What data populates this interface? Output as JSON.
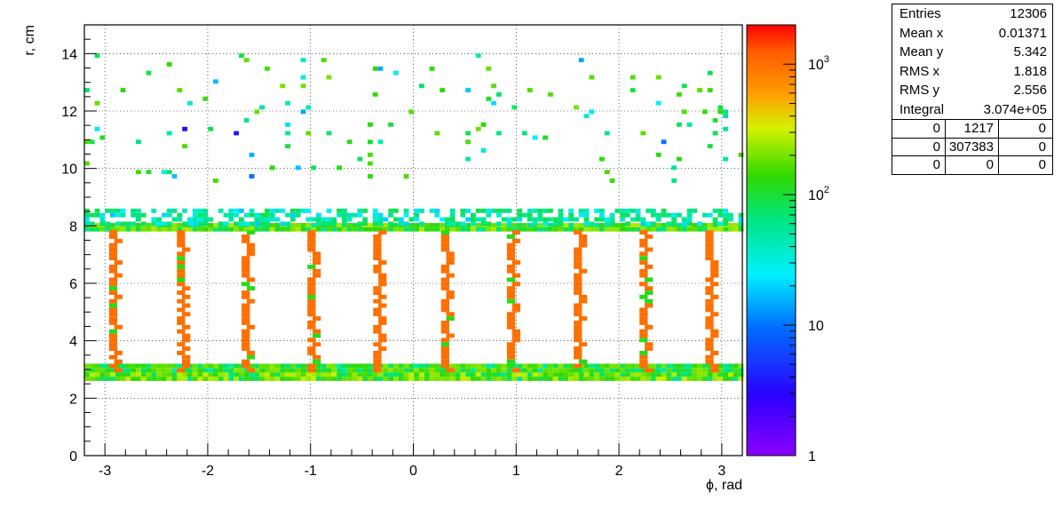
{
  "stats_box": {
    "rows": [
      {
        "label": "Entries",
        "value": "12306"
      },
      {
        "label": "Mean x",
        "value": "0.01371"
      },
      {
        "label": "Mean y",
        "value": "5.342"
      },
      {
        "label": "RMS x",
        "value": "1.818"
      },
      {
        "label": "RMS y",
        "value": "2.556"
      },
      {
        "label": "Integral",
        "value": "3.074e+05"
      }
    ],
    "overflow_grid": [
      [
        "0",
        "1217",
        "0"
      ],
      [
        "0",
        "307383",
        "0"
      ],
      [
        "0",
        "0",
        "0"
      ]
    ]
  },
  "chart_data": {
    "type": "heatmap",
    "xlabel": "ϕ, rad",
    "ylabel": "r, cm",
    "xlim": [
      -3.2,
      3.2
    ],
    "ylim": [
      0,
      15
    ],
    "x_ticks": [
      -3,
      -2,
      -1,
      0,
      1,
      2,
      3
    ],
    "y_ticks": [
      0,
      2,
      4,
      6,
      8,
      10,
      12,
      14
    ],
    "grid": true,
    "color_scale": "log",
    "z_range": [
      1,
      2000
    ],
    "colorbar_ticks": [
      "1",
      "10",
      "10^2",
      "10^3"
    ],
    "bins": [
      {
        "x_range": [
          -3.2,
          3.2
        ],
        "y_range": [
          2.6,
          2.9
        ],
        "z": 200,
        "note": "inner ring"
      },
      {
        "x_range": [
          -3.2,
          3.2
        ],
        "y_range": [
          2.9,
          3.2
        ],
        "z": 150
      },
      {
        "x_range": [
          -3.2,
          3.2
        ],
        "y_range": [
          7.8,
          8.0
        ],
        "z": 180,
        "note": "outer ring"
      },
      {
        "x_range": [
          -3.2,
          3.2
        ],
        "y_range": [
          8.0,
          8.6
        ],
        "z": 60
      },
      {
        "x_range": [
          -3.2,
          3.2
        ],
        "y_range": [
          9.5,
          14.0
        ],
        "z": 5,
        "note": "sparse scatter"
      }
    ],
    "ladder_columns": [
      {
        "x": -2.91,
        "y_range": [
          2.9,
          7.8
        ],
        "z": 1000
      },
      {
        "x": -2.25,
        "y_range": [
          2.9,
          7.8
        ],
        "z": 1000
      },
      {
        "x": -1.62,
        "y_range": [
          2.9,
          7.8
        ],
        "z": 1000
      },
      {
        "x": -0.98,
        "y_range": [
          2.9,
          7.8
        ],
        "z": 1000
      },
      {
        "x": -0.34,
        "y_range": [
          2.9,
          7.8
        ],
        "z": 1000
      },
      {
        "x": 0.32,
        "y_range": [
          2.9,
          7.8
        ],
        "z": 1000
      },
      {
        "x": 0.96,
        "y_range": [
          2.9,
          7.8
        ],
        "z": 1000
      },
      {
        "x": 1.61,
        "y_range": [
          2.9,
          7.8
        ],
        "z": 1000
      },
      {
        "x": 2.25,
        "y_range": [
          2.9,
          7.8
        ],
        "z": 1000
      },
      {
        "x": 2.89,
        "y_range": [
          2.9,
          7.8
        ],
        "z": 1000
      }
    ]
  }
}
